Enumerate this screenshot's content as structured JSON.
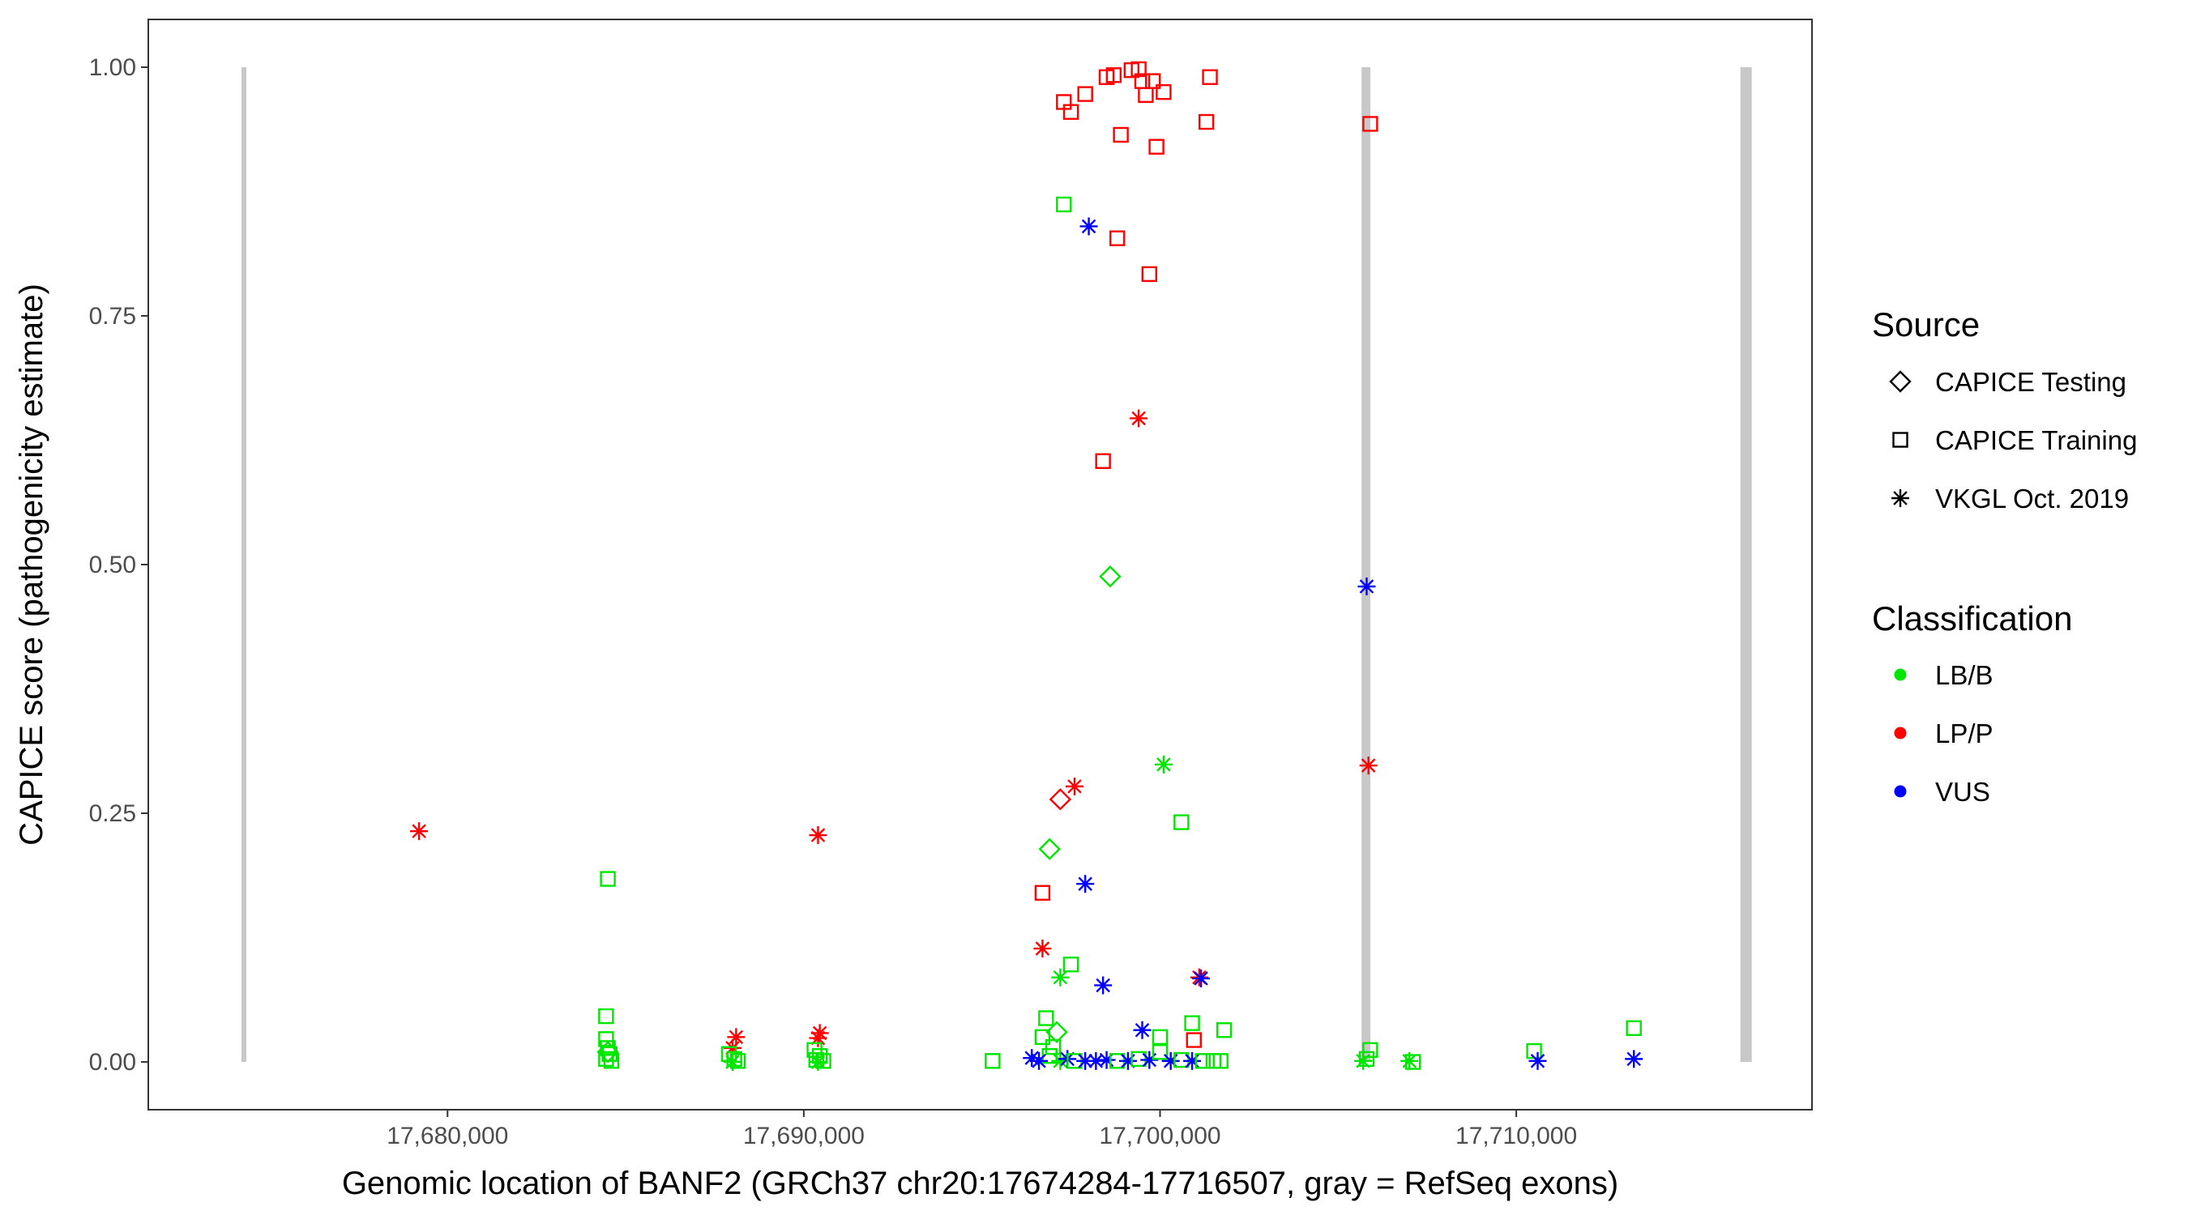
{
  "chart_data": {
    "type": "scatter",
    "xlabel": "Genomic location of BANF2 (GRCh37 chr20:17674284-17716507, gray = RefSeq exons)",
    "ylabel": "CAPICE score (pathogenicity estimate)",
    "xlim": [
      17671600,
      17718300
    ],
    "ylim": [
      -0.048,
      1.048
    ],
    "x_ticks": [
      17680000,
      17690000,
      17700000,
      17710000
    ],
    "x_tick_labels": [
      "17,680,000",
      "17,690,000",
      "17,700,000",
      "17,710,000"
    ],
    "y_ticks": [
      0,
      0.25,
      0.5,
      0.75,
      1.0
    ],
    "y_tick_labels": [
      "0.00",
      "0.25",
      "0.50",
      "0.75",
      "1.00"
    ],
    "grid": false,
    "exons": [
      {
        "x": 17674284,
        "width": "thin"
      },
      {
        "x": 17705780,
        "width": "medium"
      },
      {
        "x": 17716450,
        "width": "thick"
      }
    ],
    "exon_color": "#c8c8c8",
    "legend": {
      "position": "right",
      "source": {
        "title": "Source",
        "items": [
          {
            "label": "CAPICE Testing",
            "shape": "diamond"
          },
          {
            "label": "CAPICE Training",
            "shape": "square"
          },
          {
            "label": "VKGL Oct. 2019",
            "shape": "asterisk"
          }
        ]
      },
      "classification": {
        "title": "Classification",
        "items": [
          {
            "label": "LB/B",
            "color": "#00e600"
          },
          {
            "label": "LP/P",
            "color": "#ff0000"
          },
          {
            "label": "VUS",
            "color": "#0000ff"
          }
        ]
      }
    },
    "colors": {
      "LB/B": "#00e600",
      "LP/P": "#ff0000",
      "VUS": "#0000ff"
    },
    "points": [
      {
        "x": 17679200,
        "y": 0.232,
        "shape": "asterisk",
        "cls": "LP/P"
      },
      {
        "x": 17684500,
        "y": 0.184,
        "shape": "square",
        "cls": "LB/B"
      },
      {
        "x": 17684450,
        "y": 0.046,
        "shape": "square",
        "cls": "LB/B"
      },
      {
        "x": 17684450,
        "y": 0.023,
        "shape": "square",
        "cls": "LB/B"
      },
      {
        "x": 17684500,
        "y": 0.014,
        "shape": "square",
        "cls": "LB/B"
      },
      {
        "x": 17684550,
        "y": 0.008,
        "shape": "square",
        "cls": "LB/B"
      },
      {
        "x": 17684450,
        "y": 0.003,
        "shape": "square",
        "cls": "LB/B"
      },
      {
        "x": 17684600,
        "y": 0.001,
        "shape": "square",
        "cls": "LB/B"
      },
      {
        "x": 17684500,
        "y": 0.01,
        "shape": "diamond",
        "cls": "LB/B"
      },
      {
        "x": 17688100,
        "y": 0.025,
        "shape": "asterisk",
        "cls": "LP/P"
      },
      {
        "x": 17688000,
        "y": 0.014,
        "shape": "asterisk",
        "cls": "LP/P"
      },
      {
        "x": 17687900,
        "y": 0.008,
        "shape": "square",
        "cls": "LB/B"
      },
      {
        "x": 17688050,
        "y": 0.003,
        "shape": "square",
        "cls": "LB/B"
      },
      {
        "x": 17688150,
        "y": 0.001,
        "shape": "square",
        "cls": "LB/B"
      },
      {
        "x": 17688000,
        "y": 0.0,
        "shape": "asterisk",
        "cls": "LB/B"
      },
      {
        "x": 17690400,
        "y": 0.228,
        "shape": "asterisk",
        "cls": "LP/P"
      },
      {
        "x": 17690450,
        "y": 0.029,
        "shape": "asterisk",
        "cls": "LP/P"
      },
      {
        "x": 17690400,
        "y": 0.024,
        "shape": "asterisk",
        "cls": "LP/P"
      },
      {
        "x": 17690300,
        "y": 0.012,
        "shape": "square",
        "cls": "LB/B"
      },
      {
        "x": 17690450,
        "y": 0.006,
        "shape": "square",
        "cls": "LB/B"
      },
      {
        "x": 17690350,
        "y": 0.002,
        "shape": "square",
        "cls": "LB/B"
      },
      {
        "x": 17690550,
        "y": 0.001,
        "shape": "square",
        "cls": "LB/B"
      },
      {
        "x": 17690400,
        "y": 0.0,
        "shape": "asterisk",
        "cls": "LB/B"
      },
      {
        "x": 17695300,
        "y": 0.001,
        "shape": "square",
        "cls": "LB/B"
      },
      {
        "x": 17696700,
        "y": 0.025,
        "shape": "square",
        "cls": "LB/B"
      },
      {
        "x": 17696800,
        "y": 0.044,
        "shape": "square",
        "cls": "LB/B"
      },
      {
        "x": 17697100,
        "y": 0.03,
        "shape": "diamond",
        "cls": "LB/B"
      },
      {
        "x": 17697000,
        "y": 0.015,
        "shape": "square",
        "cls": "LB/B"
      },
      {
        "x": 17696900,
        "y": 0.006,
        "shape": "square",
        "cls": "LB/B"
      },
      {
        "x": 17696400,
        "y": 0.004,
        "shape": "asterisk",
        "cls": "VUS"
      },
      {
        "x": 17696600,
        "y": 0.001,
        "shape": "asterisk",
        "cls": "VUS"
      },
      {
        "x": 17697200,
        "y": 0.001,
        "shape": "asterisk",
        "cls": "LB/B"
      },
      {
        "x": 17697400,
        "y": 0.003,
        "shape": "asterisk",
        "cls": "VUS"
      },
      {
        "x": 17697600,
        "y": 0.001,
        "shape": "square",
        "cls": "LB/B"
      },
      {
        "x": 17697900,
        "y": 0.001,
        "shape": "asterisk",
        "cls": "VUS"
      },
      {
        "x": 17698200,
        "y": 0.001,
        "shape": "asterisk",
        "cls": "VUS"
      },
      {
        "x": 17698500,
        "y": 0.002,
        "shape": "asterisk",
        "cls": "VUS"
      },
      {
        "x": 17698800,
        "y": 0.001,
        "shape": "square",
        "cls": "LB/B"
      },
      {
        "x": 17699100,
        "y": 0.001,
        "shape": "asterisk",
        "cls": "VUS"
      },
      {
        "x": 17699400,
        "y": 0.003,
        "shape": "square",
        "cls": "LB/B"
      },
      {
        "x": 17699700,
        "y": 0.002,
        "shape": "asterisk",
        "cls": "VUS"
      },
      {
        "x": 17700000,
        "y": 0.01,
        "shape": "square",
        "cls": "LB/B"
      },
      {
        "x": 17700300,
        "y": 0.001,
        "shape": "asterisk",
        "cls": "VUS"
      },
      {
        "x": 17700600,
        "y": 0.002,
        "shape": "square",
        "cls": "LB/B"
      },
      {
        "x": 17700900,
        "y": 0.001,
        "shape": "asterisk",
        "cls": "VUS"
      },
      {
        "x": 17701200,
        "y": 0.001,
        "shape": "square",
        "cls": "LB/B"
      },
      {
        "x": 17701500,
        "y": 0.001,
        "shape": "square",
        "cls": "LB/B"
      },
      {
        "x": 17701700,
        "y": 0.001,
        "shape": "square",
        "cls": "LB/B"
      },
      {
        "x": 17697300,
        "y": 0.862,
        "shape": "square",
        "cls": "LB/B"
      },
      {
        "x": 17698000,
        "y": 0.84,
        "shape": "asterisk",
        "cls": "VUS"
      },
      {
        "x": 17698800,
        "y": 0.828,
        "shape": "square",
        "cls": "LP/P"
      },
      {
        "x": 17699700,
        "y": 0.792,
        "shape": "square",
        "cls": "LP/P"
      },
      {
        "x": 17697300,
        "y": 0.965,
        "shape": "square",
        "cls": "LP/P"
      },
      {
        "x": 17697500,
        "y": 0.955,
        "shape": "square",
        "cls": "LP/P"
      },
      {
        "x": 17697900,
        "y": 0.973,
        "shape": "square",
        "cls": "LP/P"
      },
      {
        "x": 17698500,
        "y": 0.99,
        "shape": "square",
        "cls": "LP/P"
      },
      {
        "x": 17698700,
        "y": 0.992,
        "shape": "square",
        "cls": "LP/P"
      },
      {
        "x": 17698900,
        "y": 0.932,
        "shape": "square",
        "cls": "LP/P"
      },
      {
        "x": 17699200,
        "y": 0.997,
        "shape": "square",
        "cls": "LP/P"
      },
      {
        "x": 17699400,
        "y": 0.998,
        "shape": "square",
        "cls": "LP/P"
      },
      {
        "x": 17699500,
        "y": 0.986,
        "shape": "square",
        "cls": "LP/P"
      },
      {
        "x": 17699600,
        "y": 0.972,
        "shape": "square",
        "cls": "LP/P"
      },
      {
        "x": 17699800,
        "y": 0.986,
        "shape": "square",
        "cls": "LP/P"
      },
      {
        "x": 17699900,
        "y": 0.92,
        "shape": "square",
        "cls": "LP/P"
      },
      {
        "x": 17700100,
        "y": 0.975,
        "shape": "square",
        "cls": "LP/P"
      },
      {
        "x": 17701300,
        "y": 0.945,
        "shape": "square",
        "cls": "LP/P"
      },
      {
        "x": 17701400,
        "y": 0.99,
        "shape": "square",
        "cls": "LP/P"
      },
      {
        "x": 17705900,
        "y": 0.943,
        "shape": "square",
        "cls": "LP/P"
      },
      {
        "x": 17699400,
        "y": 0.647,
        "shape": "asterisk",
        "cls": "LP/P"
      },
      {
        "x": 17698400,
        "y": 0.604,
        "shape": "square",
        "cls": "LP/P"
      },
      {
        "x": 17698600,
        "y": 0.488,
        "shape": "diamond",
        "cls": "LB/B"
      },
      {
        "x": 17705800,
        "y": 0.478,
        "shape": "asterisk",
        "cls": "VUS"
      },
      {
        "x": 17700100,
        "y": 0.299,
        "shape": "asterisk",
        "cls": "LB/B"
      },
      {
        "x": 17705850,
        "y": 0.298,
        "shape": "asterisk",
        "cls": "LP/P"
      },
      {
        "x": 17697600,
        "y": 0.277,
        "shape": "asterisk",
        "cls": "LP/P"
      },
      {
        "x": 17697200,
        "y": 0.264,
        "shape": "diamond",
        "cls": "LP/P"
      },
      {
        "x": 17700600,
        "y": 0.241,
        "shape": "square",
        "cls": "LB/B"
      },
      {
        "x": 17696900,
        "y": 0.214,
        "shape": "diamond",
        "cls": "LB/B"
      },
      {
        "x": 17697900,
        "y": 0.179,
        "shape": "asterisk",
        "cls": "VUS"
      },
      {
        "x": 17696700,
        "y": 0.17,
        "shape": "square",
        "cls": "LP/P"
      },
      {
        "x": 17696700,
        "y": 0.114,
        "shape": "asterisk",
        "cls": "LP/P"
      },
      {
        "x": 17697500,
        "y": 0.098,
        "shape": "square",
        "cls": "LB/B"
      },
      {
        "x": 17697200,
        "y": 0.085,
        "shape": "asterisk",
        "cls": "LB/B"
      },
      {
        "x": 17701100,
        "y": 0.085,
        "shape": "asterisk",
        "cls": "LP/P"
      },
      {
        "x": 17701150,
        "y": 0.084,
        "shape": "asterisk",
        "cls": "VUS"
      },
      {
        "x": 17698400,
        "y": 0.077,
        "shape": "asterisk",
        "cls": "VUS"
      },
      {
        "x": 17699500,
        "y": 0.032,
        "shape": "asterisk",
        "cls": "VUS"
      },
      {
        "x": 17700900,
        "y": 0.039,
        "shape": "square",
        "cls": "LB/B"
      },
      {
        "x": 17701800,
        "y": 0.032,
        "shape": "square",
        "cls": "LB/B"
      },
      {
        "x": 17700000,
        "y": 0.025,
        "shape": "square",
        "cls": "LB/B"
      },
      {
        "x": 17700950,
        "y": 0.022,
        "shape": "square",
        "cls": "LP/P"
      },
      {
        "x": 17705900,
        "y": 0.012,
        "shape": "square",
        "cls": "LB/B"
      },
      {
        "x": 17705800,
        "y": 0.003,
        "shape": "square",
        "cls": "LB/B"
      },
      {
        "x": 17705700,
        "y": 0.001,
        "shape": "asterisk",
        "cls": "LB/B"
      },
      {
        "x": 17707000,
        "y": 0.001,
        "shape": "asterisk",
        "cls": "LB/B"
      },
      {
        "x": 17707100,
        "y": 0.0,
        "shape": "square",
        "cls": "LB/B"
      },
      {
        "x": 17710500,
        "y": 0.011,
        "shape": "square",
        "cls": "LB/B"
      },
      {
        "x": 17710600,
        "y": 0.001,
        "shape": "asterisk",
        "cls": "VUS"
      },
      {
        "x": 17713300,
        "y": 0.034,
        "shape": "square",
        "cls": "LB/B"
      },
      {
        "x": 17713300,
        "y": 0.003,
        "shape": "asterisk",
        "cls": "VUS"
      }
    ]
  }
}
